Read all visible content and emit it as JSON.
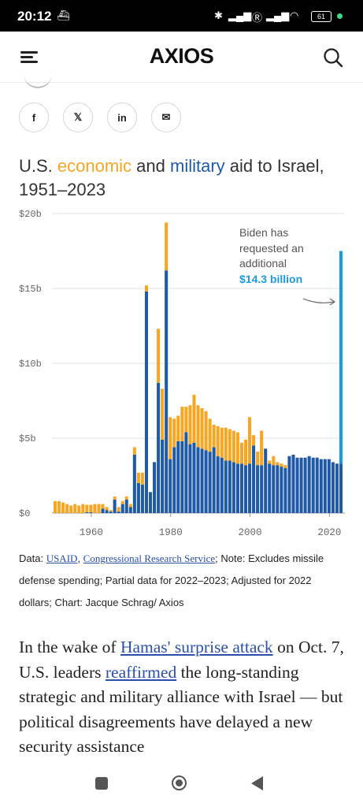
{
  "status_bar": {
    "time": "20:12",
    "battery": "61"
  },
  "header": {
    "logo": "AXIOS"
  },
  "share": {
    "facebook": "f",
    "x": "𝕏",
    "linkedin": "in",
    "email": "✉"
  },
  "chart_title": {
    "part1": "U.S. ",
    "economic": "economic",
    "part2": " and ",
    "military": "military",
    "part3": " aid to Israel, 1951–2023"
  },
  "colors": {
    "economic": "#f5a623",
    "military": "#1f5aa6",
    "request": "#1a9be0"
  },
  "annotation": {
    "text": "Biden has requested an additional",
    "amount": "$14.3 billion"
  },
  "chart_data": {
    "type": "bar",
    "stacked": true,
    "y_ticks": [
      "$0",
      "$5b",
      "$10b",
      "$15b",
      "$20b"
    ],
    "ylim": [
      0,
      20
    ],
    "x_ticks": [
      "1960",
      "1980",
      "2000",
      "2020"
    ],
    "years": [
      1951,
      1952,
      1953,
      1954,
      1955,
      1956,
      1957,
      1958,
      1959,
      1960,
      1961,
      1962,
      1963,
      1964,
      1965,
      1966,
      1967,
      1968,
      1969,
      1970,
      1971,
      1972,
      1973,
      1974,
      1975,
      1976,
      1977,
      1978,
      1979,
      1980,
      1981,
      1982,
      1983,
      1984,
      1985,
      1986,
      1987,
      1988,
      1989,
      1990,
      1991,
      1992,
      1993,
      1994,
      1995,
      1996,
      1997,
      1998,
      1999,
      2000,
      2001,
      2002,
      2003,
      2004,
      2005,
      2006,
      2007,
      2008,
      2009,
      2010,
      2011,
      2012,
      2013,
      2014,
      2015,
      2016,
      2017,
      2018,
      2019,
      2020,
      2021,
      2022,
      2023
    ],
    "series": [
      {
        "name": "military",
        "values": [
          0,
          0,
          0,
          0,
          0,
          0,
          0,
          0,
          0.05,
          0.05,
          0,
          0,
          0.3,
          0.2,
          0.1,
          0.9,
          0.1,
          0.6,
          0.9,
          0.4,
          3.9,
          2.0,
          1.9,
          14.8,
          1.4,
          3.4,
          8.7,
          4.9,
          16.2,
          3.6,
          4.4,
          4.8,
          4.8,
          5.4,
          4.6,
          4.7,
          4.4,
          4.3,
          4.2,
          4.1,
          4.4,
          3.8,
          3.7,
          3.5,
          3.5,
          3.4,
          3.3,
          3.3,
          3.2,
          3.3,
          4.5,
          3.2,
          3.2,
          4.3,
          3.3,
          3.2,
          3.2,
          3.1,
          3.0,
          3.8,
          3.9,
          3.7,
          3.7,
          3.7,
          3.8,
          3.7,
          3.7,
          3.6,
          3.6,
          3.6,
          3.4,
          3.3,
          3.3
        ]
      },
      {
        "name": "economic",
        "values": [
          0.8,
          0.8,
          0.7,
          0.6,
          0.5,
          0.6,
          0.5,
          0.6,
          0.5,
          0.5,
          0.6,
          0.6,
          0.3,
          0.2,
          0.1,
          0.2,
          0.3,
          0.2,
          0.2,
          0.2,
          0.5,
          0.7,
          0.8,
          0.4,
          0,
          0,
          3.6,
          3.4,
          3.2,
          2.8,
          1.9,
          1.7,
          2.3,
          1.7,
          2.6,
          3.2,
          2.8,
          2.7,
          2.6,
          2.2,
          1.5,
          2.0,
          2.0,
          2.2,
          2.1,
          2.1,
          2.1,
          1.4,
          1.7,
          3.1,
          0.7,
          0.9,
          2.3,
          0,
          0.2,
          0.6,
          0.2,
          0.2,
          0.2,
          0,
          0,
          0,
          0,
          0,
          0,
          0,
          0,
          0,
          0,
          0,
          0,
          0,
          0
        ]
      }
    ],
    "request_bar": {
      "year": 2023,
      "value": 17.5,
      "label": "$14.3 billion"
    }
  },
  "note": {
    "data_label": "Data: ",
    "usaid": "USAID",
    "sep": ", ",
    "crs": "Congressional Research Service",
    "rest": "; Note: Excludes missile defense spending; Partial data for 2022–2023; Adjusted for 2022 dollars; Chart: Jacque Schrag/ Axios"
  },
  "body": {
    "t1": "In the wake of ",
    "link1": "Hamas' surprise attack",
    "t2": " on Oct. 7, U.S. leaders ",
    "link2": "reaffirmed",
    "t3": " the long-standing strategic and military alliance with Israel — but political disagreements have delayed a new security assistance"
  }
}
